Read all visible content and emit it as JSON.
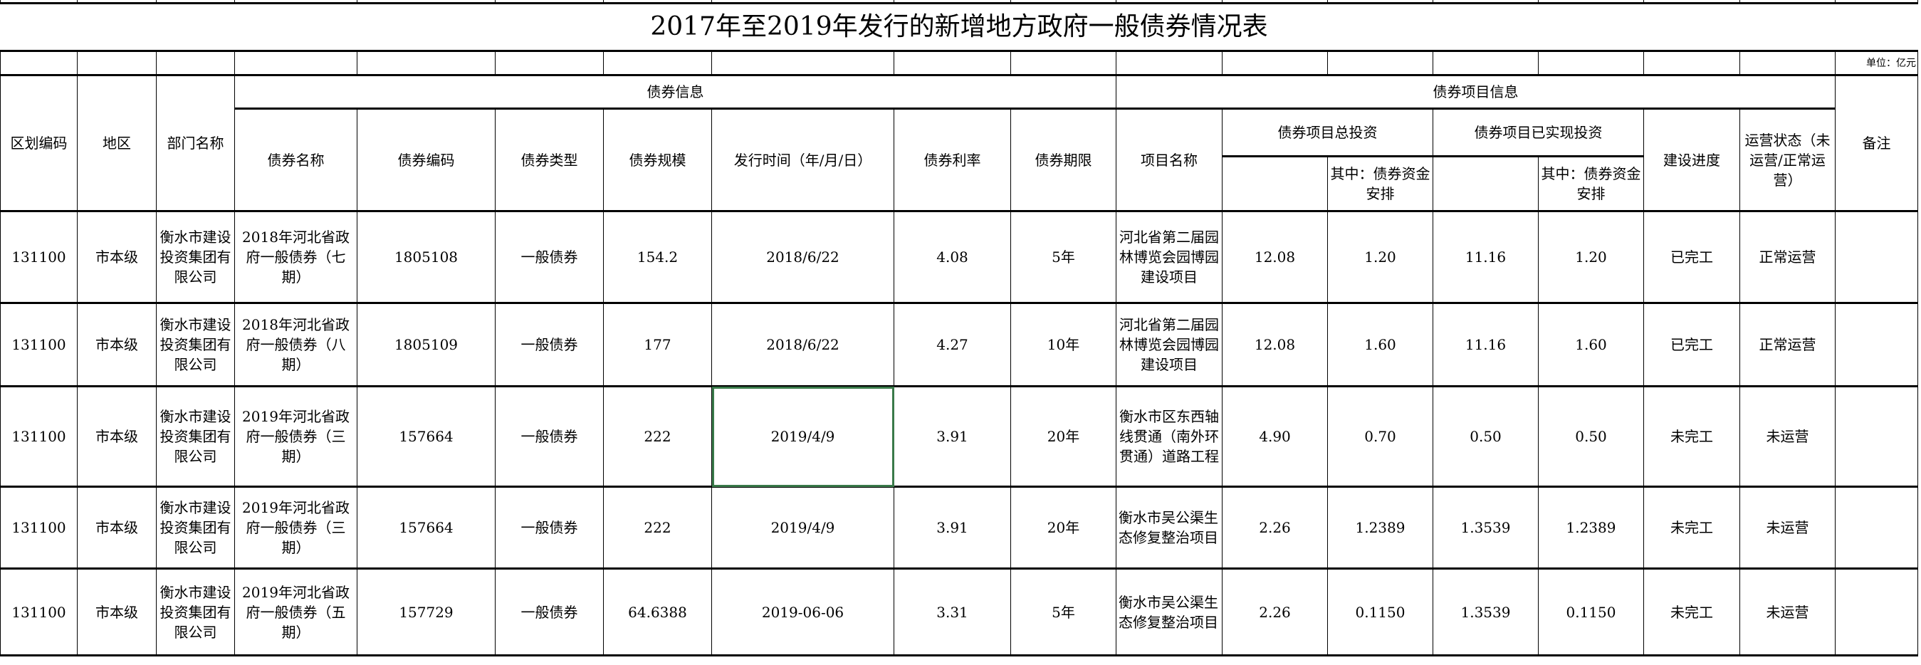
{
  "title": "2017年至2019年发行的新增地方政府一般债券情况表",
  "unit": "单位：亿元",
  "headers": {
    "region_code": "区划编码",
    "region": "地区",
    "department": "部门名称",
    "bond_info": "债券信息",
    "project_info": "债券项目信息",
    "remark": "备注",
    "bond_name": "债券名称",
    "bond_code": "债券编码",
    "bond_type": "债券类型",
    "bond_scale": "债券规模",
    "issue_date": "发行时间（年/月/日）",
    "rate": "债券利率",
    "term": "债券期限",
    "project_name": "项目名称",
    "total_invest": "债券项目总投资",
    "realized_invest": "债券项目已实现投资",
    "progress": "建设进度",
    "status": "运营状态（未运营/正常运营）",
    "of_which_1": "其中：债券资金安排",
    "of_which_2": "其中：债券资金安排"
  },
  "columns": [
    "region_code",
    "region",
    "department",
    "bond_name",
    "bond_code",
    "bond_type",
    "bond_scale",
    "issue_date",
    "rate",
    "term",
    "project_name",
    "total_invest",
    "total_invest_bond",
    "realized_invest",
    "realized_invest_bond",
    "progress",
    "status",
    "remark"
  ],
  "rows": [
    {
      "region_code": "131100",
      "region": "市本级",
      "department": "衡水市建设投资集团有限公司",
      "bond_name": "2018年河北省政府一般债券（七期）",
      "bond_code": "1805108",
      "bond_type": "一般债券",
      "bond_scale": "154.2",
      "issue_date": "2018/6/22",
      "rate": "4.08",
      "term": "5年",
      "project_name": "河北省第二届园林博览会园博园建设项目",
      "total_invest": "12.08",
      "total_invest_bond": "1.20",
      "realized_invest": "11.16",
      "realized_invest_bond": "1.20",
      "progress": "已完工",
      "status": "正常运营",
      "remark": ""
    },
    {
      "region_code": "131100",
      "region": "市本级",
      "department": "衡水市建设投资集团有限公司",
      "bond_name": "2018年河北省政府一般债券（八期）",
      "bond_code": "1805109",
      "bond_type": "一般债券",
      "bond_scale": "177",
      "issue_date": "2018/6/22",
      "rate": "4.27",
      "term": "10年",
      "project_name": "河北省第二届园林博览会园博园建设项目",
      "total_invest": "12.08",
      "total_invest_bond": "1.60",
      "realized_invest": "11.16",
      "realized_invest_bond": "1.60",
      "progress": "已完工",
      "status": "正常运营",
      "remark": ""
    },
    {
      "region_code": "131100",
      "region": "市本级",
      "department": "衡水市建设投资集团有限公司",
      "bond_name": "2019年河北省政府一般债券（三期）",
      "bond_code": "157664",
      "bond_type": "一般债券",
      "bond_scale": "222",
      "issue_date": "2019/4/9",
      "rate": "3.91",
      "term": "20年",
      "project_name": "衡水市区东西轴线贯通（南外环贯通）道路工程",
      "total_invest": "4.90",
      "total_invest_bond": "0.70",
      "realized_invest": "0.50",
      "realized_invest_bond": "0.50",
      "progress": "未完工",
      "status": "未运营",
      "remark": ""
    },
    {
      "region_code": "131100",
      "region": "市本级",
      "department": "衡水市建设投资集团有限公司",
      "bond_name": "2019年河北省政府一般债券（三期）",
      "bond_code": "157664",
      "bond_type": "一般债券",
      "bond_scale": "222",
      "issue_date": "2019/4/9",
      "rate": "3.91",
      "term": "20年",
      "project_name": "衡水市吴公渠生态修复整治项目",
      "total_invest": "2.26",
      "total_invest_bond": "1.2389",
      "realized_invest": "1.3539",
      "realized_invest_bond": "1.2389",
      "progress": "未完工",
      "status": "未运营",
      "remark": ""
    },
    {
      "region_code": "131100",
      "region": "市本级",
      "department": "衡水市建设投资集团有限公司",
      "bond_name": "2019年河北省政府一般债券（五期）",
      "bond_code": "157729",
      "bond_type": "一般债券",
      "bond_scale": "64.6388",
      "issue_date": "2019-06-06",
      "rate": "3.31",
      "term": "5年",
      "project_name": "衡水市吴公渠生态修复整治项目",
      "total_invest": "2.26",
      "total_invest_bond": "0.1150",
      "realized_invest": "1.3539",
      "realized_invest_bond": "0.1150",
      "progress": "未完工",
      "status": "未运营",
      "remark": ""
    }
  ],
  "selected_cell": {
    "row": 2,
    "column": "issue_date"
  },
  "selection_color": "#3a7a4a"
}
